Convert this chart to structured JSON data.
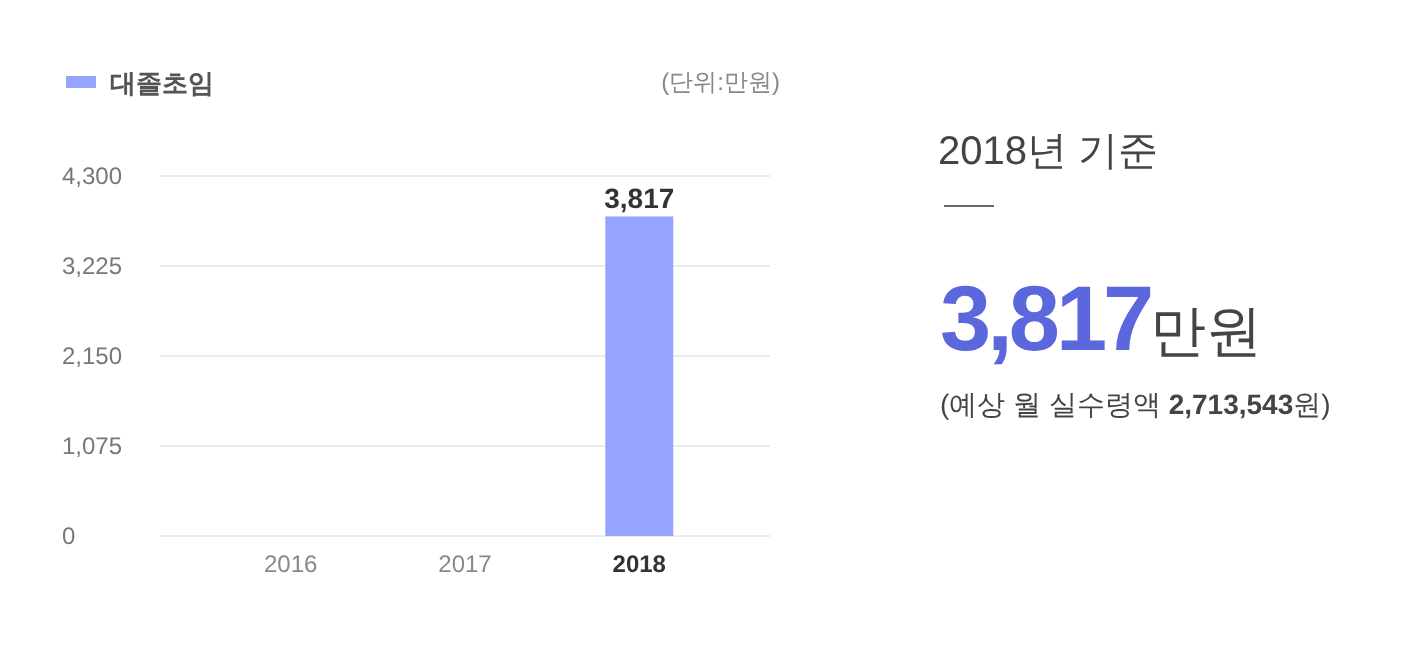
{
  "chart_data": [
    {
      "type": "bar",
      "categories": [
        "2016",
        "2017",
        "2018"
      ],
      "series": [
        {
          "name": "대졸초임",
          "color": "#95a4ff",
          "values": [
            null,
            null,
            3817
          ],
          "value_labels": [
            null,
            null,
            "3,817"
          ]
        }
      ],
      "ylim": [
        0,
        4300
      ],
      "yticks": [
        {
          "value": 0,
          "label": "0"
        },
        {
          "value": 1075,
          "label": "1,075"
        },
        {
          "value": 2150,
          "label": "2,150"
        },
        {
          "value": 3225,
          "label": "3,225"
        },
        {
          "value": 4300,
          "label": "4,300"
        }
      ],
      "grid": "y",
      "legend": "top left",
      "annotations": [
        "(단위:만원)"
      ]
    },
    {
      "type": "other",
      "title": "2018년 기준",
      "annotations": [
        "3,817",
        "만원",
        "(예상 월 실수령액 ",
        "2,713,543",
        "원)"
      ]
    }
  ]
}
